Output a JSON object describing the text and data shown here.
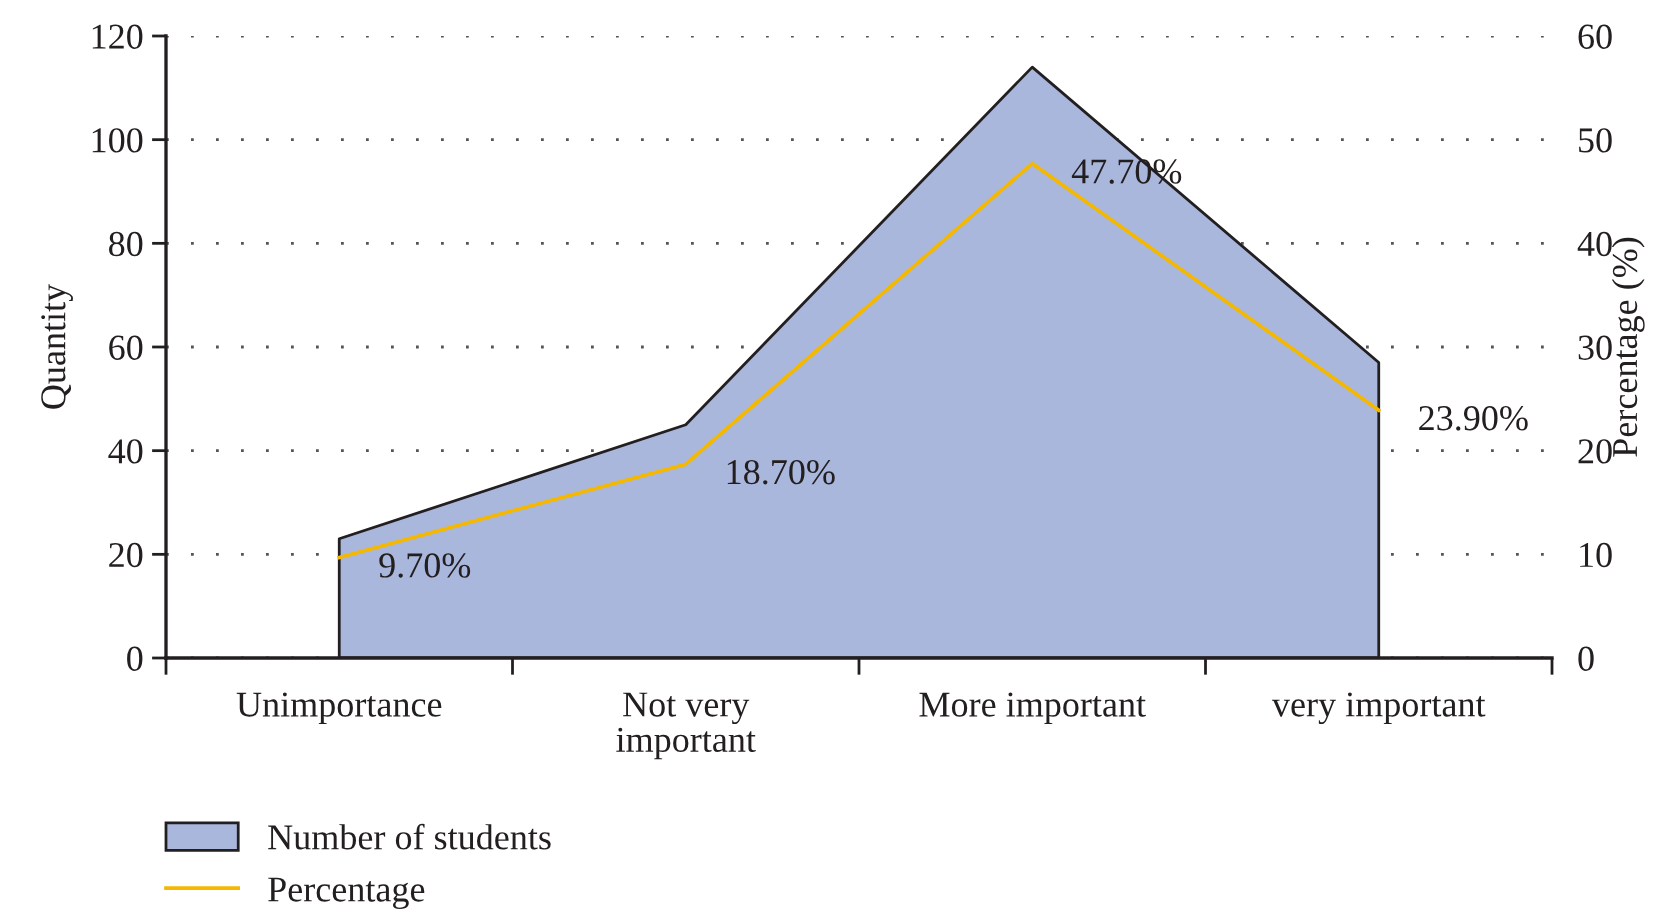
{
  "chart_data": {
    "type": "area",
    "categories": [
      "Unimportance",
      "Not very\nimportant",
      "More important",
      "very important"
    ],
    "ylabel": "Quantity",
    "y2label": "Percentage (%)",
    "series": [
      {
        "name": "Number of students",
        "color": "#aab7dd",
        "values": [
          23,
          45,
          114,
          57
        ]
      },
      {
        "name": "Percentage",
        "type": "line",
        "axis": "y2",
        "color": "#f5b800",
        "values": [
          9.7,
          18.7,
          47.7,
          23.9
        ],
        "value_labels": [
          "9.70%",
          "18.70%",
          "47.70%",
          "23.90%"
        ]
      }
    ],
    "ylim": [
      0,
      120
    ],
    "yticks": [
      0,
      20,
      40,
      60,
      80,
      100,
      120
    ],
    "y2lim": [
      0,
      60
    ],
    "y2ticks": [
      0,
      10,
      20,
      30,
      40,
      50,
      60
    ],
    "grid": "y",
    "legend": "bottom left",
    "line_style": "solid"
  }
}
